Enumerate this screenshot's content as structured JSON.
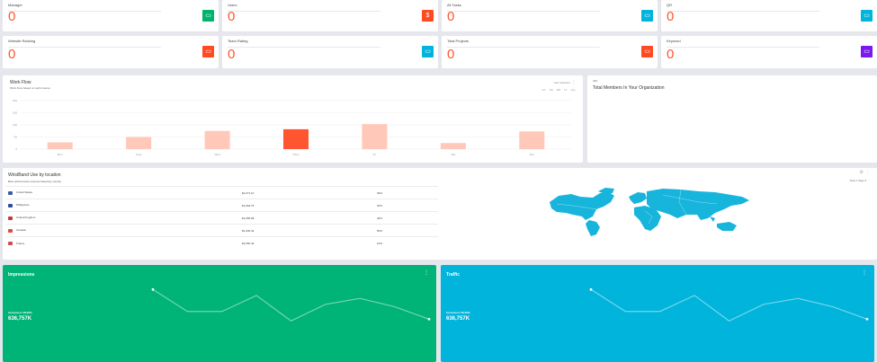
{
  "stats": [
    {
      "label": "Manager",
      "value": "0",
      "icon": "card-icon",
      "color": "#00b46e"
    },
    {
      "label": "Users",
      "value": "0",
      "icon": "dollar-icon",
      "color": "#ff4a22"
    },
    {
      "label": "All Tasks",
      "value": "0",
      "icon": "card-icon",
      "color": "#00b4dc"
    },
    {
      "label": "QR",
      "value": "0",
      "icon": "card-icon",
      "color": "#00b4dc"
    },
    {
      "label": "Website Ranking",
      "value": "0",
      "icon": "card-icon",
      "color": "#ff4a22"
    },
    {
      "label": "Team Rating",
      "value": "0",
      "icon": "card-icon",
      "color": "#00b4dc"
    },
    {
      "label": "Total Projects",
      "value": "0",
      "icon": "card-icon",
      "color": "#ff4a22"
    },
    {
      "label": "Keyword",
      "value": "0",
      "icon": "card-icon",
      "color": "#7b18f0"
    }
  ],
  "workflow": {
    "title": "Work Flow",
    "subtitle": "Work Flow based on performance",
    "select_label": "Year selection",
    "ranges": [
      "1W",
      "1M",
      "6M",
      "1Y",
      "ALL"
    ],
    "active_range": "1W"
  },
  "chart_data": {
    "type": "bar",
    "categories": [
      "Mon",
      "Tues",
      "Wed",
      "Thurs",
      "Fri",
      "Sat",
      "Sun"
    ],
    "values": [
      28,
      50,
      75,
      82,
      103,
      25,
      73
    ],
    "highlight_index": 3,
    "yticks": [
      "200",
      "150",
      "100",
      "50",
      "0"
    ],
    "ylim": [
      0,
      200
    ],
    "colors": {
      "bar": "#ffc8b8",
      "highlight": "#ff5530"
    }
  },
  "members": {
    "small_label": "463",
    "title": "Total Members In Your Organization"
  },
  "wristband": {
    "title": "WristBand Use by location",
    "subtitle": "Best performance revenue based by country",
    "dropdown": "View 7 days",
    "rows": [
      {
        "country": "United States",
        "amount": "$1,671.10",
        "percent": "39%",
        "flag": "#3a5ba7"
      },
      {
        "country": "Philippines",
        "amount": "$1,064.75",
        "percent": "30%",
        "flag": "#2b4ea1"
      },
      {
        "country": "United Kingdom",
        "amount": "$1,055.98",
        "percent": "45%",
        "flag": "#c43a3a"
      },
      {
        "country": "Canada",
        "amount": "$1,045.49",
        "percent": "50%",
        "flag": "#e34b3d"
      },
      {
        "country": "France",
        "amount": "$2,050.49",
        "percent": "10%",
        "flag": "#d44a4a"
      }
    ],
    "map_color": "#17b4dc"
  },
  "tiles": [
    {
      "title": "Impressions",
      "sub": "Customers 58.56%",
      "value": "636,757K",
      "color": "#00b377"
    },
    {
      "title": "Traffic",
      "sub": "Customers 58.56%",
      "value": "636,757K",
      "color": "#00b4dc"
    }
  ],
  "tile_line": [
    95,
    58,
    58,
    85,
    42,
    70,
    80,
    66,
    45
  ]
}
